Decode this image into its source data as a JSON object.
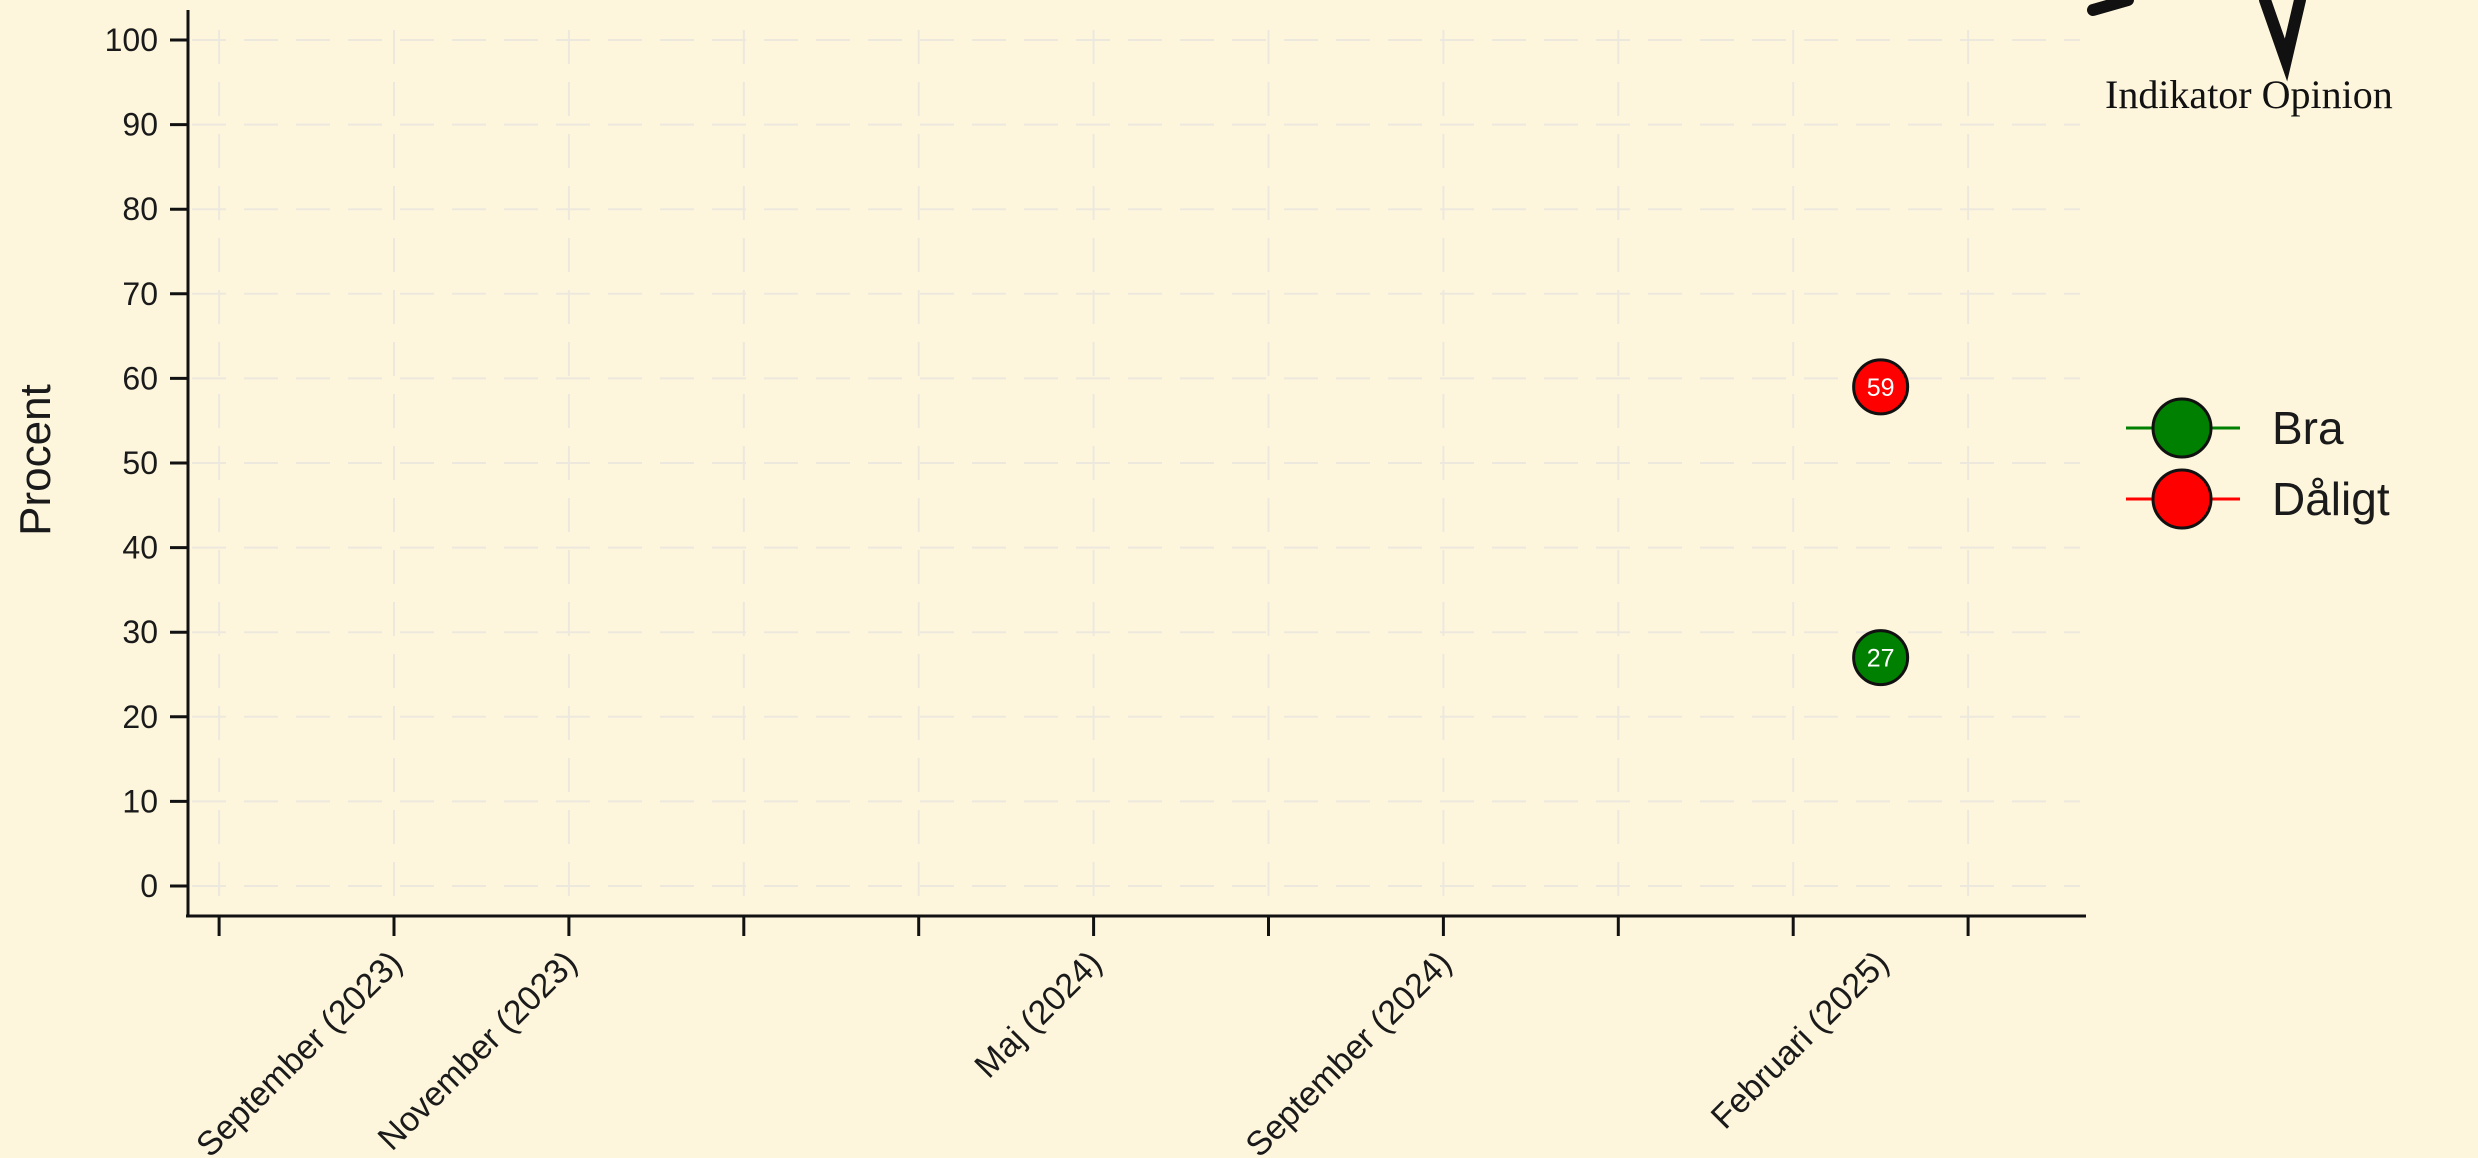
{
  "brand": {
    "name": "Indikator Opinion"
  },
  "chart_data": {
    "type": "scatter",
    "ylabel": "Procent",
    "ylim": [
      0,
      100
    ],
    "yticks": [
      0,
      10,
      20,
      30,
      40,
      50,
      60,
      70,
      80,
      90,
      100
    ],
    "xtick_labels": [
      {
        "label": "September (2023)",
        "date": "2023-09"
      },
      {
        "label": "November (2023)",
        "date": "2023-11"
      },
      {
        "label": "Maj (2024)",
        "date": "2024-05"
      },
      {
        "label": "September (2024)",
        "date": "2024-09"
      },
      {
        "label": "Februari (2025)",
        "date": "2025-02"
      }
    ],
    "grid": true,
    "legend_position": "right",
    "series": [
      {
        "name": "Bra",
        "color": "#008000",
        "points": [
          {
            "x": "2025-02",
            "y": 27,
            "label": "27"
          }
        ]
      },
      {
        "name": "Dåligt",
        "color": "#ff0000",
        "points": [
          {
            "x": "2025-02",
            "y": 59,
            "label": "59"
          }
        ]
      }
    ]
  }
}
